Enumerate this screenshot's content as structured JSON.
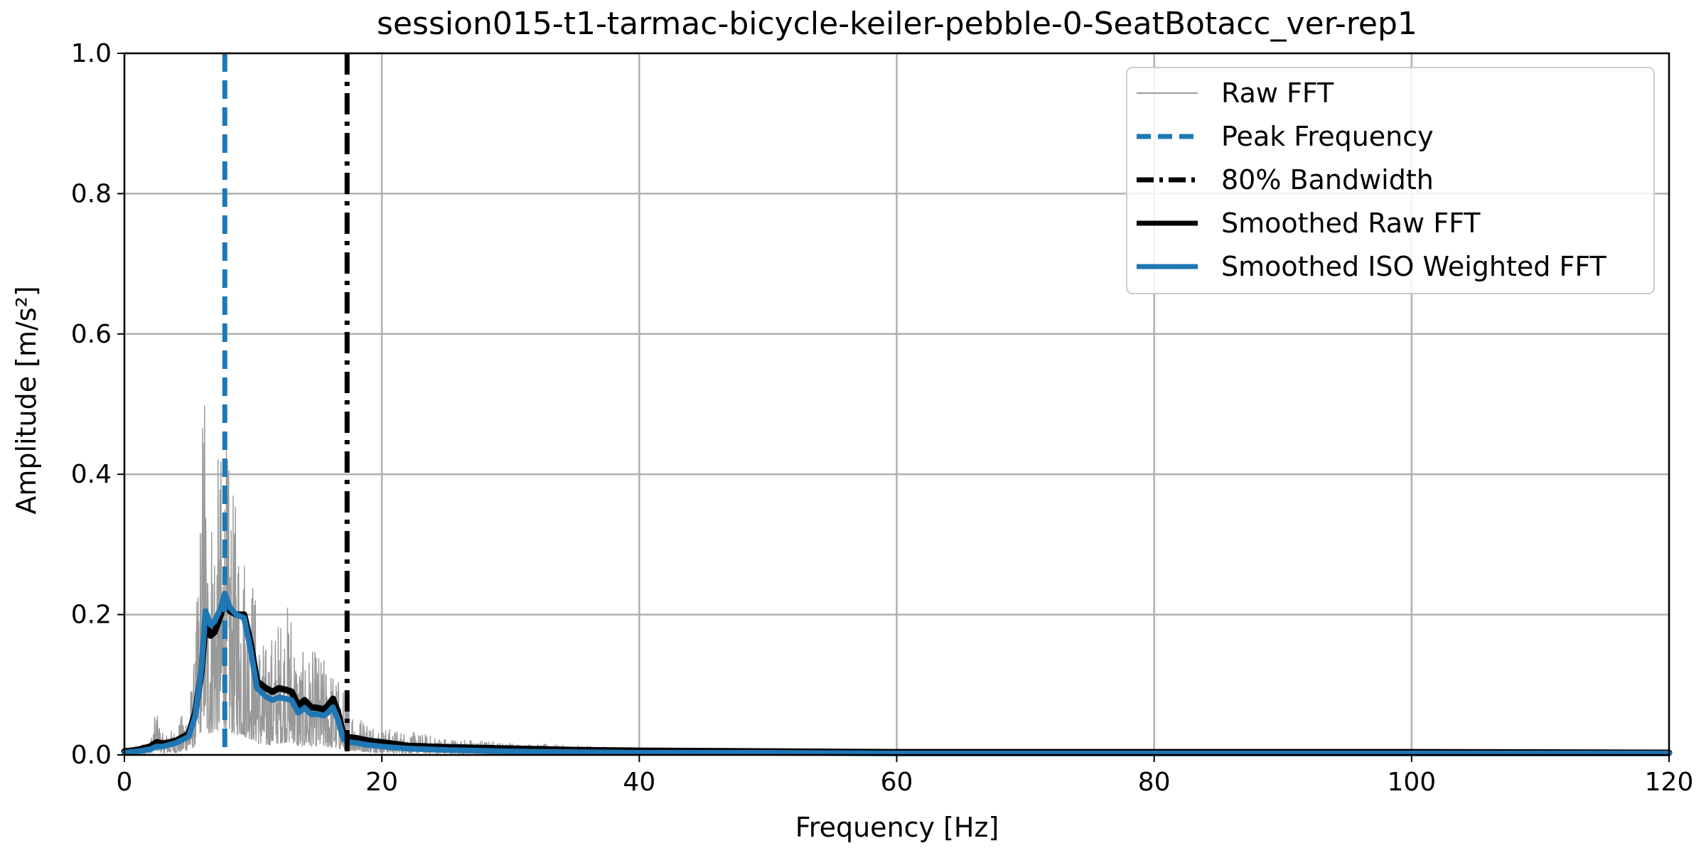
{
  "chart_data": {
    "type": "line",
    "title": "session015-t1-tarmac-bicycle-keiler-pebble-0-SeatBotacc_ver-rep1",
    "xlabel": "Frequency [Hz]",
    "ylabel": "Amplitude [m/s²]",
    "xlim": [
      0,
      120
    ],
    "ylim": [
      0,
      1.0
    ],
    "x_ticks": [
      "0",
      "20",
      "40",
      "60",
      "80",
      "100",
      "120"
    ],
    "y_ticks": [
      "0.0",
      "0.2",
      "0.4",
      "0.6",
      "0.8",
      "1.0"
    ],
    "grid": true,
    "legend_position": "top-right",
    "colors": {
      "raw": "#999999",
      "peak": "#1f77b4",
      "bandwidth": "#000000",
      "smoothed_raw": "#000000",
      "smoothed_iso": "#1f77b4"
    },
    "legend": [
      {
        "key": "raw",
        "label": "Raw FFT"
      },
      {
        "key": "peak",
        "label": "Peak Frequency"
      },
      {
        "key": "bandwidth",
        "label": "80% Bandwidth"
      },
      {
        "key": "smoothed_raw",
        "label": "Smoothed Raw FFT"
      },
      {
        "key": "smoothed_iso",
        "label": "Smoothed ISO Weighted FFT"
      }
    ],
    "peak_frequency": 7.8,
    "bandwidth_80": 17.3,
    "series": [
      {
        "name": "Smoothed Raw FFT",
        "x": [
          0,
          1,
          2,
          2.5,
          3,
          4,
          5,
          5.5,
          6,
          6.3,
          6.7,
          7,
          7.5,
          7.8,
          8.2,
          8.7,
          9.3,
          9.8,
          10.3,
          11,
          11.5,
          12,
          12.5,
          13,
          13.5,
          14,
          14.5,
          15,
          15.5,
          15.8,
          16.2,
          16.6,
          17,
          17.5,
          18,
          19,
          20,
          22,
          25,
          30,
          35,
          40,
          50,
          60,
          80,
          100,
          120
        ],
        "y": [
          0.005,
          0.007,
          0.012,
          0.018,
          0.016,
          0.02,
          0.03,
          0.06,
          0.12,
          0.19,
          0.17,
          0.175,
          0.2,
          0.225,
          0.205,
          0.2,
          0.2,
          0.16,
          0.105,
          0.095,
          0.09,
          0.095,
          0.093,
          0.09,
          0.07,
          0.078,
          0.068,
          0.067,
          0.065,
          0.07,
          0.08,
          0.06,
          0.03,
          0.025,
          0.024,
          0.02,
          0.018,
          0.013,
          0.011,
          0.009,
          0.007,
          0.006,
          0.005,
          0.004,
          0.004,
          0.004,
          0.003
        ]
      },
      {
        "name": "Smoothed ISO Weighted FFT",
        "x": [
          0,
          1,
          2,
          2.5,
          3,
          4,
          5,
          5.5,
          6,
          6.3,
          6.7,
          7,
          7.5,
          7.8,
          8.2,
          8.7,
          9.3,
          9.8,
          10.3,
          11,
          11.5,
          12,
          12.5,
          13,
          13.5,
          14,
          14.5,
          15,
          15.5,
          15.8,
          16.2,
          16.6,
          17,
          17.5,
          18,
          19,
          20,
          22,
          25,
          30,
          35,
          40,
          50,
          60,
          80,
          100,
          120
        ],
        "y": [
          0.003,
          0.005,
          0.008,
          0.012,
          0.012,
          0.017,
          0.026,
          0.055,
          0.125,
          0.205,
          0.185,
          0.19,
          0.21,
          0.23,
          0.21,
          0.2,
          0.195,
          0.15,
          0.095,
          0.083,
          0.078,
          0.082,
          0.08,
          0.078,
          0.06,
          0.067,
          0.058,
          0.058,
          0.056,
          0.06,
          0.068,
          0.05,
          0.023,
          0.018,
          0.017,
          0.014,
          0.012,
          0.009,
          0.007,
          0.005,
          0.004,
          0.003,
          0.003,
          0.002,
          0.002,
          0.002,
          0.002
        ]
      }
    ],
    "raw_fft_envelope": {
      "x": [
        0,
        2,
        2.5,
        3,
        4,
        5,
        5.5,
        6,
        6.2,
        6.4,
        7,
        7.6,
        7.8,
        8.2,
        8.5,
        9,
        9.5,
        10,
        10.5,
        11,
        12,
        13,
        13.5,
        14,
        15,
        16,
        17,
        18,
        20,
        25,
        30,
        40,
        50,
        60,
        80,
        100,
        120
      ],
      "y": [
        0.01,
        0.02,
        0.07,
        0.03,
        0.04,
        0.08,
        0.15,
        0.44,
        0.64,
        0.35,
        0.41,
        0.45,
        0.48,
        0.4,
        0.37,
        0.36,
        0.3,
        0.27,
        0.18,
        0.16,
        0.2,
        0.23,
        0.14,
        0.15,
        0.15,
        0.13,
        0.1,
        0.06,
        0.04,
        0.025,
        0.018,
        0.01,
        0.008,
        0.006,
        0.005,
        0.005,
        0.004
      ]
    }
  }
}
